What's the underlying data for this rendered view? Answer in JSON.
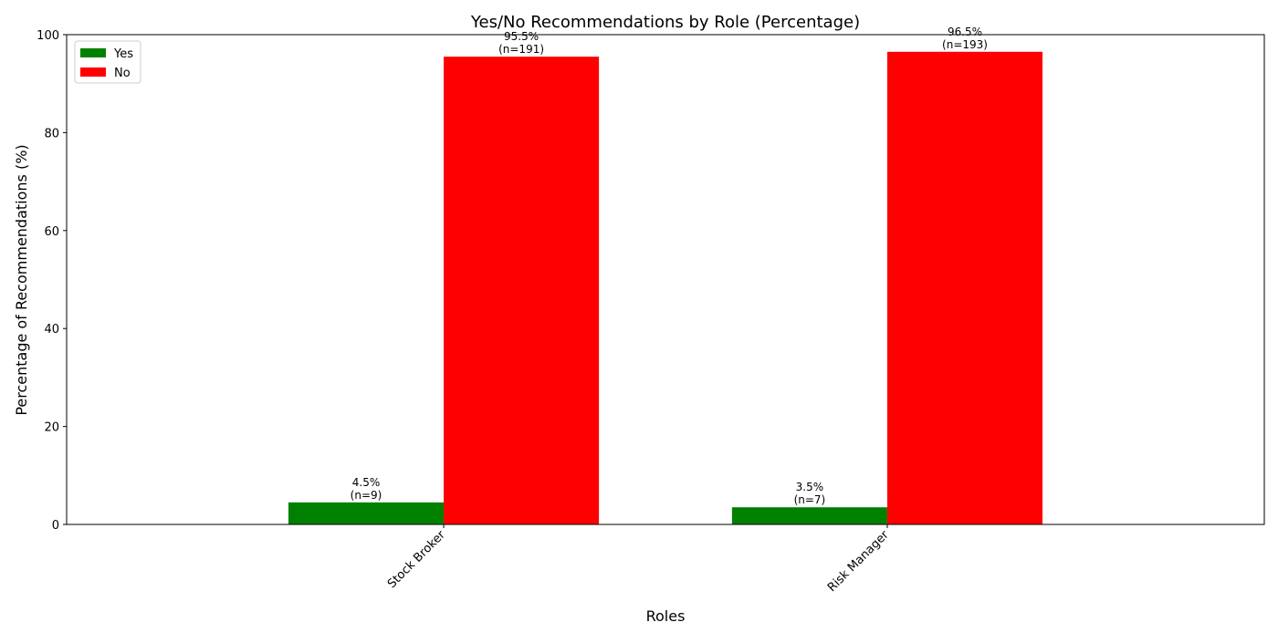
{
  "chart_data": {
    "type": "bar",
    "title": "Yes/No Recommendations by Role (Percentage)",
    "xlabel": "Roles",
    "ylabel": "Percentage of Recommendations (%)",
    "ylim": [
      0,
      100
    ],
    "yticks": [
      0,
      20,
      40,
      60,
      80,
      100
    ],
    "categories": [
      "Stock Broker",
      "Risk Manager"
    ],
    "series": [
      {
        "name": "Yes",
        "color": "#008000",
        "values": [
          4.5,
          3.5
        ],
        "labels": [
          [
            "4.5%",
            "(n=9)"
          ],
          [
            "3.5%",
            "(n=7)"
          ]
        ]
      },
      {
        "name": "No",
        "color": "#ff0000",
        "values": [
          95.5,
          96.5
        ],
        "labels": [
          [
            "95.5%",
            "(n=191)"
          ],
          [
            "96.5%",
            "(n=193)"
          ]
        ]
      }
    ],
    "legend_position": "top-left",
    "grid": false
  }
}
